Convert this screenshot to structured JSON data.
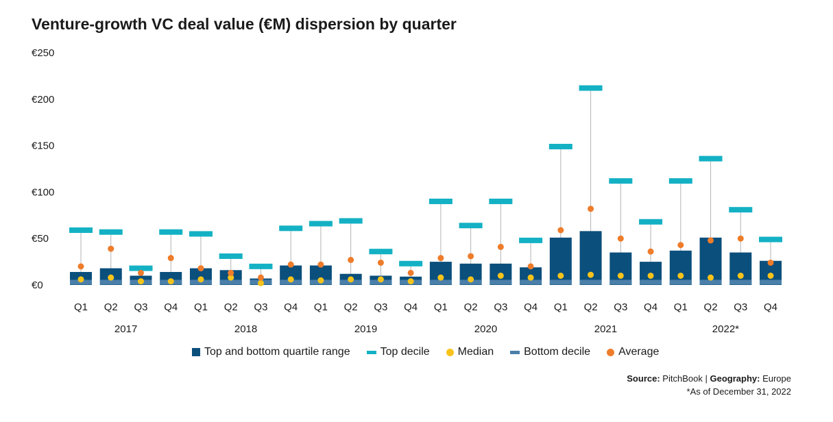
{
  "title": "Venture-growth VC deal value (€M) dispersion by quarter",
  "colors": {
    "quartile": "#0b4f7c",
    "top_decile": "#14b1c4",
    "median": "#f7c31b",
    "bottom_decile": "#4a7fa9",
    "average": "#ee7c2a",
    "whisker": "#b3b3b3"
  },
  "chart_data": {
    "type": "bar",
    "title": "Venture-growth VC deal value (€M) dispersion by quarter",
    "y_ticks": [
      "€250",
      "€200",
      "€150",
      "€100",
      "€50",
      "€0"
    ],
    "ylim": [
      0,
      250
    ],
    "grid": false,
    "legend_placement": "bottom",
    "quarters": [
      "Q1",
      "Q2",
      "Q3",
      "Q4",
      "Q1",
      "Q2",
      "Q3",
      "Q4",
      "Q1",
      "Q2",
      "Q3",
      "Q4",
      "Q1",
      "Q2",
      "Q3",
      "Q4",
      "Q1",
      "Q2",
      "Q3",
      "Q4",
      "Q1",
      "Q2",
      "Q3",
      "Q4"
    ],
    "years": [
      "2017",
      "2018",
      "2019",
      "2020",
      "2021",
      "2022*"
    ],
    "series": [
      {
        "name": "Top and bottom quartile range",
        "values": [
          14,
          18,
          10,
          14,
          18,
          16,
          7,
          21,
          21,
          12,
          10,
          9,
          25,
          23,
          23,
          19,
          51,
          58,
          35,
          25,
          37,
          51,
          35,
          26
        ]
      },
      {
        "name": "Top decile",
        "values": [
          59,
          57,
          18,
          57,
          55,
          31,
          20,
          61,
          66,
          69,
          36,
          23,
          90,
          64,
          90,
          48,
          149,
          212,
          112,
          68,
          112,
          136,
          81,
          49
        ]
      },
      {
        "name": "Median",
        "values": [
          6,
          8,
          4,
          4,
          6,
          8,
          2,
          6,
          5,
          6,
          6,
          4,
          8,
          6,
          10,
          8,
          10,
          11,
          10,
          10,
          10,
          8,
          10,
          10
        ]
      },
      {
        "name": "Bottom decile",
        "values": [
          3,
          3,
          3,
          3,
          3,
          3,
          3,
          3,
          3,
          3,
          3,
          3,
          3,
          3,
          3,
          3,
          3,
          3,
          3,
          3,
          3,
          3,
          3,
          3
        ]
      },
      {
        "name": "Average",
        "values": [
          20,
          39,
          13,
          29,
          18,
          13,
          8,
          22,
          22,
          27,
          24,
          13,
          29,
          31,
          41,
          20,
          59,
          82,
          50,
          36,
          43,
          48,
          50,
          24
        ]
      }
    ]
  },
  "legend": [
    {
      "label": "Top and bottom quartile range",
      "kind": "box",
      "color": "#0b4f7c"
    },
    {
      "label": "Top decile",
      "kind": "dash",
      "color": "#14b1c4"
    },
    {
      "label": "Median",
      "kind": "dot",
      "color": "#f7c31b"
    },
    {
      "label": "Bottom decile",
      "kind": "dash",
      "color": "#4a7fa9"
    },
    {
      "label": "Average",
      "kind": "dot",
      "color": "#ee7c2a"
    }
  ],
  "source": {
    "source_label": "Source:",
    "source_value": "PitchBook",
    "separator": "|",
    "geo_label": "Geography:",
    "geo_value": "Europe",
    "note": "*As of December 31, 2022"
  }
}
